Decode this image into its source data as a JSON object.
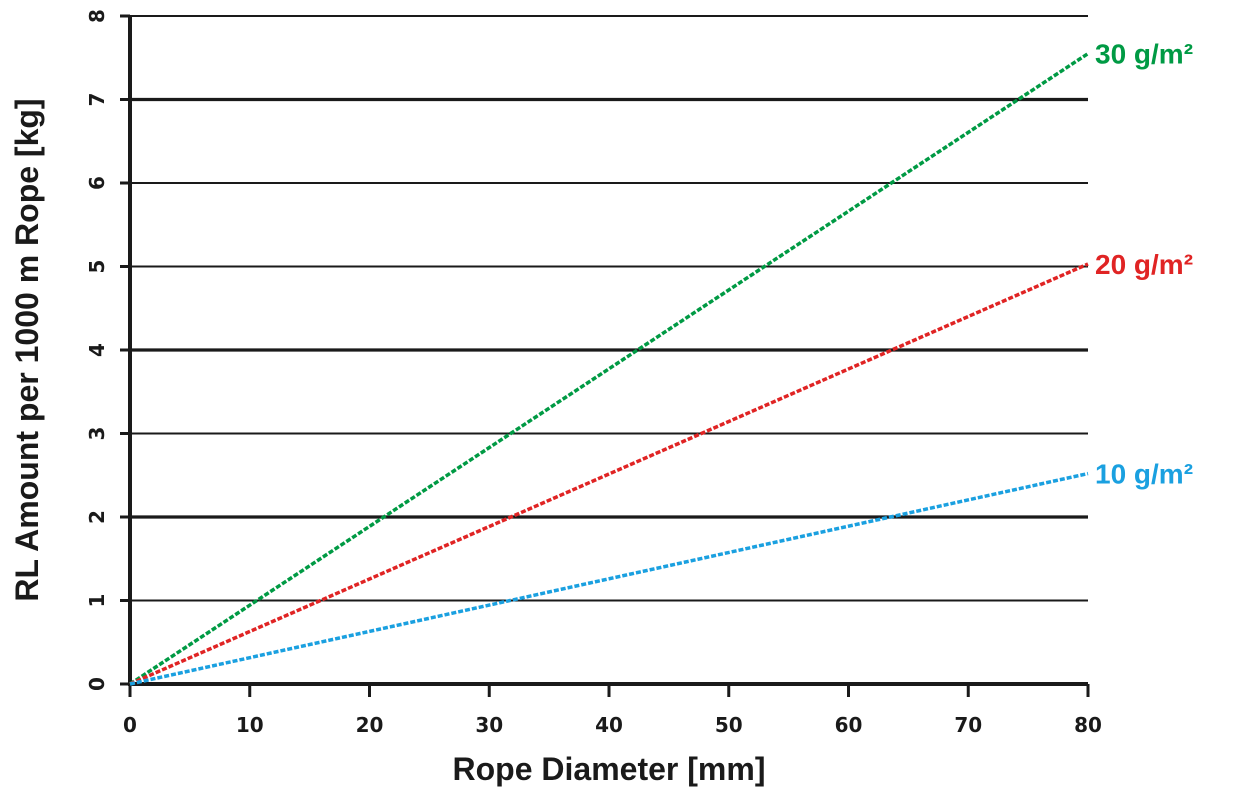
{
  "chart_data": {
    "type": "line",
    "xlabel": "Rope Diameter [mm]",
    "ylabel": "RL Amount per 1000 m Rope [kg]",
    "xlim": [
      0,
      80
    ],
    "ylim": [
      0,
      8
    ],
    "x_ticks": [
      "0",
      "10",
      "20",
      "30",
      "40",
      "50",
      "60",
      "70",
      "80"
    ],
    "y_ticks": [
      "0",
      "1",
      "2",
      "3",
      "4",
      "5",
      "6",
      "7",
      "8"
    ],
    "grid": "horizontal",
    "legend": "inline labels at line ends",
    "series": [
      {
        "name": "30 g/m²",
        "color": "#009a44",
        "x": [
          0,
          80
        ],
        "values": [
          0,
          7.55
        ]
      },
      {
        "name": "20 g/m²",
        "color": "#e02424",
        "x": [
          0,
          80
        ],
        "values": [
          0,
          5.03
        ]
      },
      {
        "name": "10 g/m²",
        "color": "#1aa0e0",
        "x": [
          0,
          80
        ],
        "values": [
          0,
          2.52
        ]
      }
    ]
  }
}
